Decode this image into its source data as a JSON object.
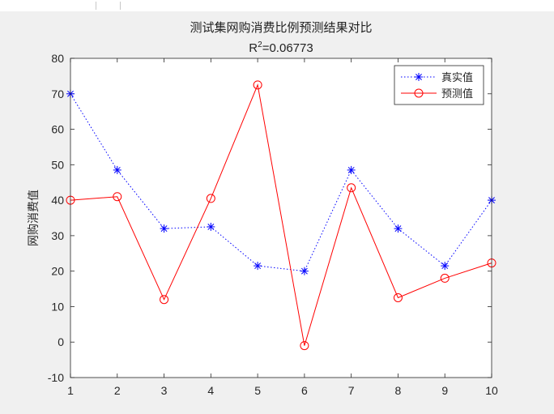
{
  "chart_data": {
    "type": "line",
    "title": "测试集网购消费比例预测结果对比",
    "subtitle": {
      "prefix": "R",
      "sup": "2",
      "suffix": "=0.06773"
    },
    "xlabel": "",
    "ylabel": "网购消费值",
    "x": [
      1,
      2,
      3,
      4,
      5,
      6,
      7,
      8,
      9,
      10
    ],
    "x_ticks": [
      "1",
      "2",
      "3",
      "4",
      "5",
      "6",
      "7",
      "8",
      "9",
      "10"
    ],
    "xlim": [
      1,
      10
    ],
    "ylim": [
      -10,
      80
    ],
    "y_ticks": [
      "-10",
      "0",
      "10",
      "20",
      "30",
      "40",
      "50",
      "60",
      "70",
      "80"
    ],
    "grid": false,
    "legend_position": "top-right",
    "series": [
      {
        "name": "真实值",
        "values": [
          70,
          48.5,
          32,
          32.5,
          21.5,
          20,
          48.5,
          32,
          21.5,
          40
        ],
        "color": "#0000ff",
        "line_style": "dotted",
        "marker": "asterisk"
      },
      {
        "name": "预测值",
        "values": [
          40,
          41,
          12,
          40.5,
          72.5,
          -1,
          43.5,
          12.5,
          18,
          22.3
        ],
        "color": "#ff0000",
        "line_style": "solid",
        "marker": "circle"
      }
    ]
  }
}
